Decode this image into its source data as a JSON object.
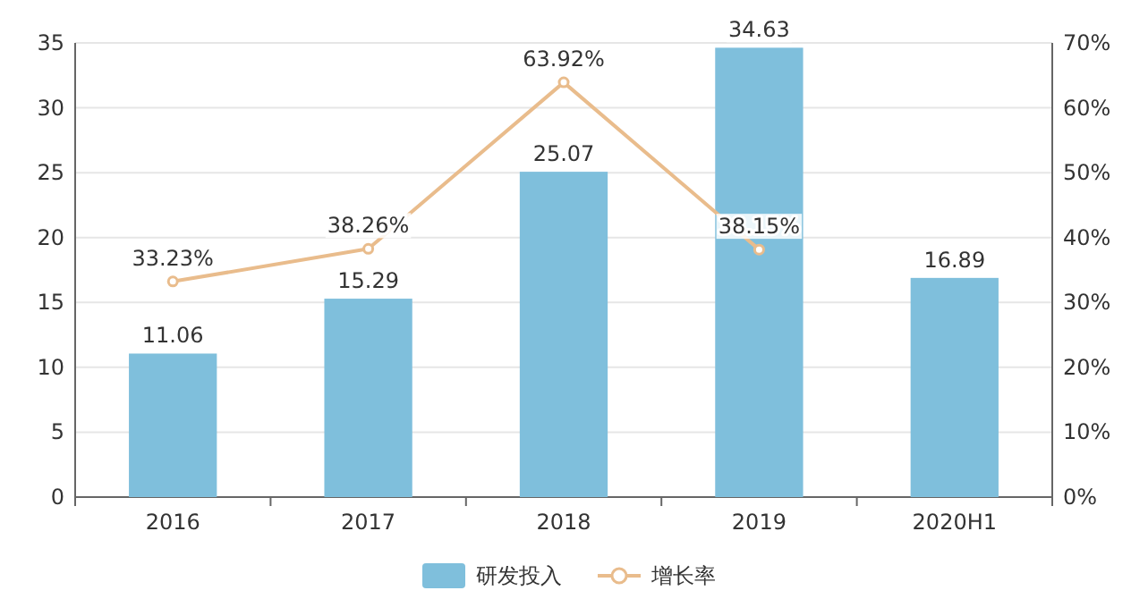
{
  "chart_data": {
    "type": "bar",
    "categories": [
      "2016",
      "2017",
      "2018",
      "2019",
      "2020H1"
    ],
    "series": [
      {
        "name": "研发投入",
        "color": "#7fbfdc",
        "values": [
          11.06,
          15.29,
          25.07,
          34.63,
          16.89
        ],
        "value_labels": [
          "11.06",
          "15.29",
          "25.07",
          "34.63",
          "16.89"
        ]
      },
      {
        "name": "增长率",
        "type": "line",
        "axis": "y2",
        "color": "#e9bc8c",
        "values": [
          33.23,
          38.26,
          63.92,
          38.15,
          null
        ],
        "value_labels": [
          "33.23%",
          "38.26%",
          "63.92%",
          "38.15%",
          null
        ]
      }
    ],
    "ylim": [
      0,
      35
    ],
    "yticks": [
      0,
      5,
      10,
      15,
      20,
      25,
      30,
      35
    ],
    "y2lim": [
      0,
      70
    ],
    "y2ticks": [
      {
        "value": 0,
        "label": "0%"
      },
      {
        "value": 10,
        "label": "10%"
      },
      {
        "value": 20,
        "label": "20%"
      },
      {
        "value": 30,
        "label": "30%"
      },
      {
        "value": 40,
        "label": "40%"
      },
      {
        "value": 50,
        "label": "50%"
      },
      {
        "value": 60,
        "label": "60%"
      },
      {
        "value": 70,
        "label": "70%"
      }
    ],
    "grid": "y",
    "legend": "bottom",
    "marker": "circle"
  }
}
